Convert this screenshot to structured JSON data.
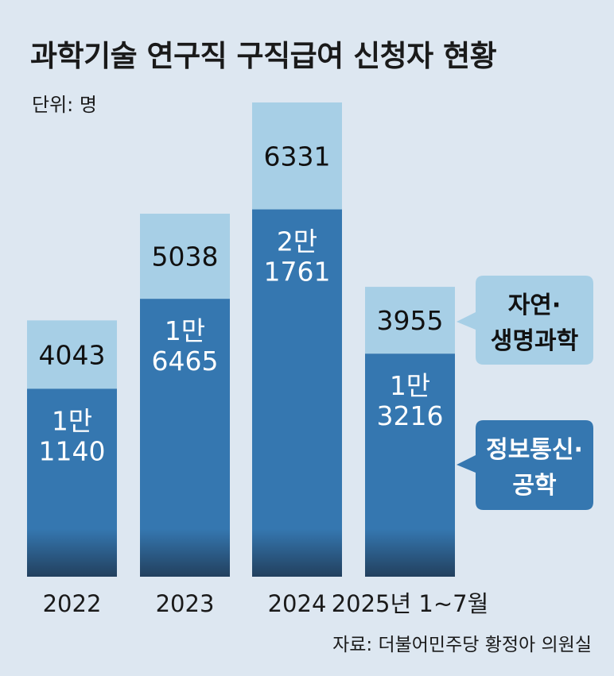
{
  "title": "과학기술 연구직 구직급여 신청자 현황",
  "unit_label": "단위: 명",
  "source": "자료: 더불어민주당 황정아 의원실",
  "colors": {
    "background": "#dde7f1",
    "dark_series": "#3577b0",
    "light_series": "#a7cfe6",
    "shadow": "#22405e"
  },
  "chart_data": {
    "type": "bar",
    "stacked": true,
    "categories": [
      "2022",
      "2023",
      "2024",
      "2025년 1~7월"
    ],
    "series": [
      {
        "name": "정보통신·공학",
        "values": [
          11140,
          16465,
          21761,
          13216
        ],
        "labels": [
          [
            "1만",
            "1140"
          ],
          [
            "1만",
            "6465"
          ],
          [
            "2만",
            "1761"
          ],
          [
            "1만",
            "3216"
          ]
        ],
        "color": "#3577b0"
      },
      {
        "name": "자연·생명과학",
        "values": [
          4043,
          5038,
          6331,
          3955
        ],
        "labels": [
          [
            "4043"
          ],
          [
            "5038"
          ],
          [
            "6331"
          ],
          [
            "3955"
          ]
        ],
        "color": "#a7cfe6"
      }
    ],
    "legend": {
      "light_callout": [
        "자연·",
        "생명과학"
      ],
      "dark_callout": [
        "정보통신·",
        "공학"
      ]
    },
    "ylim": [
      0,
      28092
    ],
    "grid": false
  }
}
